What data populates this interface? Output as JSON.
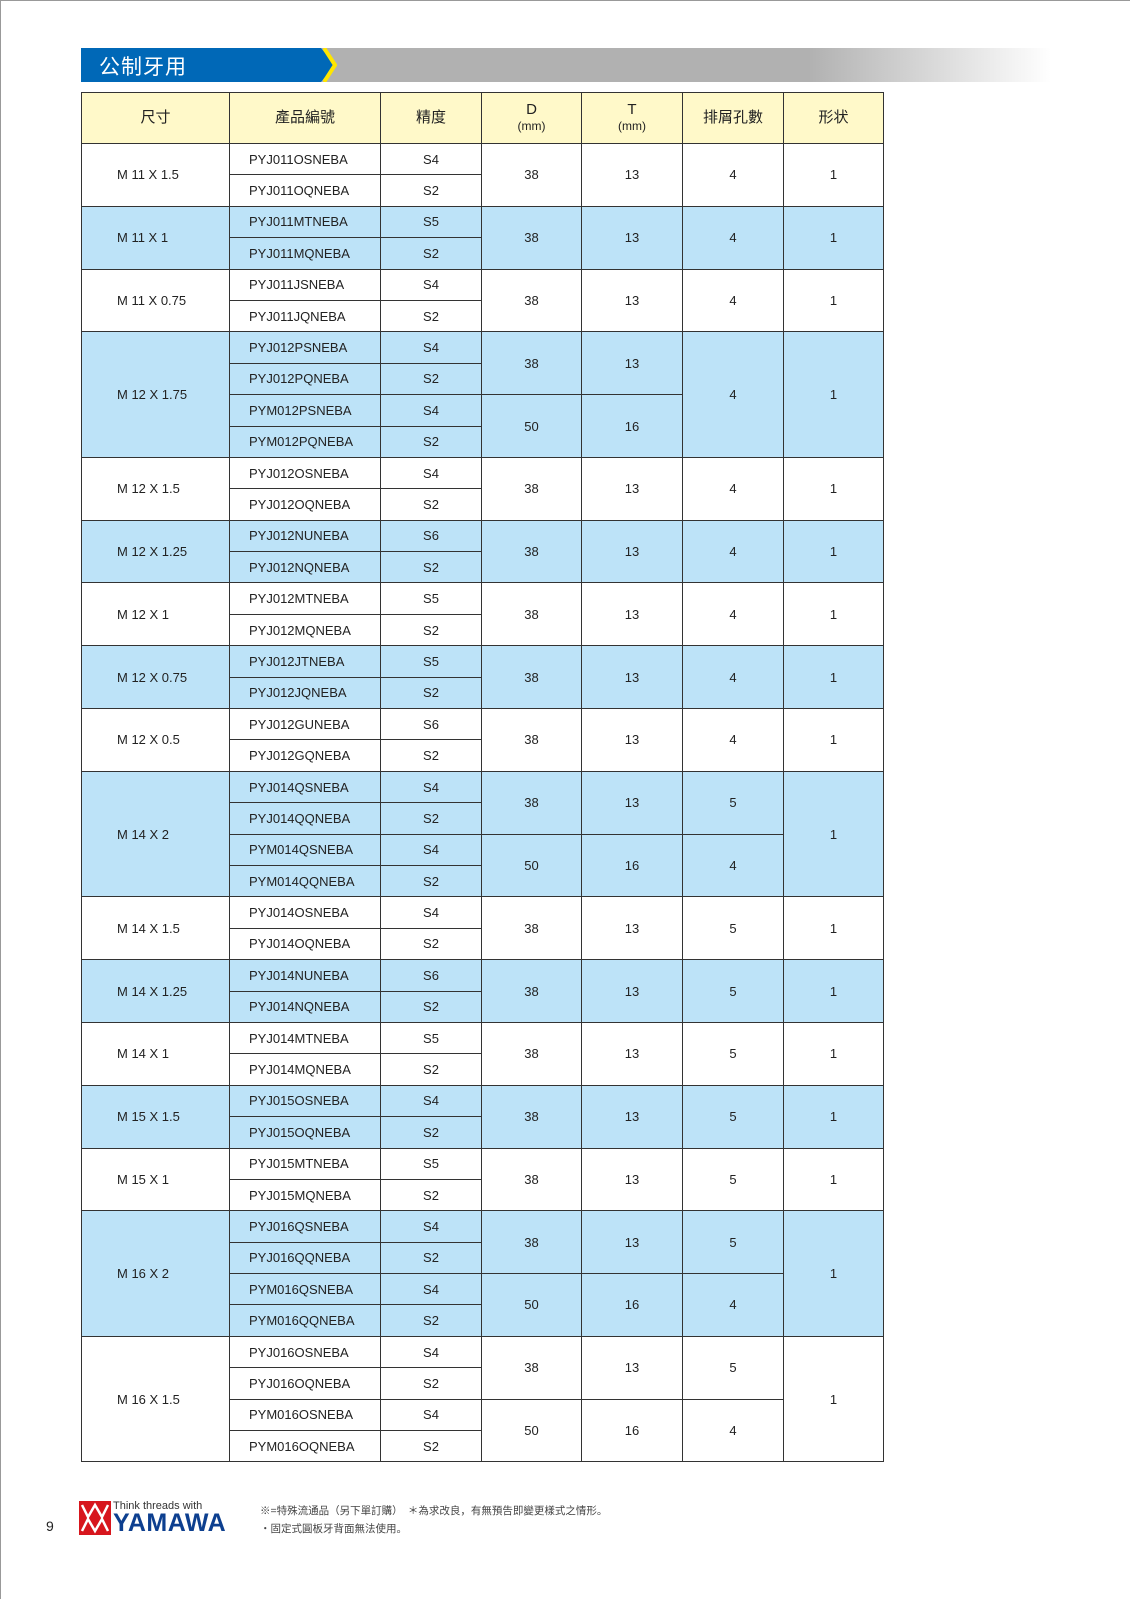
{
  "section_title": "公制牙用",
  "colors": {
    "banner_blue": "#0068b7",
    "arrow_yellow": "#ffe600",
    "header_fill": "#fff9c9",
    "row_shade": "#bde3f8",
    "logo_red": "#d7161d"
  },
  "table": {
    "headers": {
      "size": "尺寸",
      "code": "產品編號",
      "grade": "精度",
      "d": "D",
      "d_unit": "(mm)",
      "t": "T",
      "t_unit": "(mm)",
      "holes": "排屑孔數",
      "shape": "形状"
    },
    "groups": [
      {
        "size": "M 11 X 1.5",
        "shaded": false,
        "items": [
          {
            "code": "PYJ011OSNEBA",
            "grade": "S4"
          },
          {
            "code": "PYJ011OQNEBA",
            "grade": "S2"
          }
        ],
        "dt": [
          {
            "d": "38",
            "t": "13"
          }
        ],
        "holes": "4",
        "shape": "1"
      },
      {
        "size": "M 11 X 1",
        "shaded": true,
        "items": [
          {
            "code": "PYJ011MTNEBA",
            "grade": "S5"
          },
          {
            "code": "PYJ011MQNEBA",
            "grade": "S2"
          }
        ],
        "dt": [
          {
            "d": "38",
            "t": "13"
          }
        ],
        "holes": "4",
        "shape": "1"
      },
      {
        "size": "M 11 X 0.75",
        "shaded": false,
        "items": [
          {
            "code": "PYJ011JSNEBA",
            "grade": "S4"
          },
          {
            "code": "PYJ011JQNEBA",
            "grade": "S2"
          }
        ],
        "dt": [
          {
            "d": "38",
            "t": "13"
          }
        ],
        "holes": "4",
        "shape": "1"
      },
      {
        "size": "M 12 X 1.75",
        "shaded": true,
        "items": [
          {
            "code": "PYJ012PSNEBA",
            "grade": "S4"
          },
          {
            "code": "PYJ012PQNEBA",
            "grade": "S2"
          },
          {
            "code": "PYM012PSNEBA",
            "grade": "S4"
          },
          {
            "code": "PYM012PQNEBA",
            "grade": "S2"
          }
        ],
        "dt": [
          {
            "d": "38",
            "t": "13"
          },
          {
            "d": "50",
            "t": "16"
          }
        ],
        "holes": "4",
        "shape": "1"
      },
      {
        "size": "M 12 X 1.5",
        "shaded": false,
        "items": [
          {
            "code": "PYJ012OSNEBA",
            "grade": "S4"
          },
          {
            "code": "PYJ012OQNEBA",
            "grade": "S2"
          }
        ],
        "dt": [
          {
            "d": "38",
            "t": "13"
          }
        ],
        "holes": "4",
        "shape": "1"
      },
      {
        "size": "M 12 X 1.25",
        "shaded": true,
        "items": [
          {
            "code": "PYJ012NUNEBA",
            "grade": "S6"
          },
          {
            "code": "PYJ012NQNEBA",
            "grade": "S2"
          }
        ],
        "dt": [
          {
            "d": "38",
            "t": "13"
          }
        ],
        "holes": "4",
        "shape": "1"
      },
      {
        "size": "M 12 X 1",
        "shaded": false,
        "items": [
          {
            "code": "PYJ012MTNEBA",
            "grade": "S5"
          },
          {
            "code": "PYJ012MQNEBA",
            "grade": "S2"
          }
        ],
        "dt": [
          {
            "d": "38",
            "t": "13"
          }
        ],
        "holes": "4",
        "shape": "1"
      },
      {
        "size": "M 12 X 0.75",
        "shaded": true,
        "items": [
          {
            "code": "PYJ012JTNEBA",
            "grade": "S5"
          },
          {
            "code": "PYJ012JQNEBA",
            "grade": "S2"
          }
        ],
        "dt": [
          {
            "d": "38",
            "t": "13"
          }
        ],
        "holes": "4",
        "shape": "1"
      },
      {
        "size": "M 12 X 0.5",
        "shaded": false,
        "items": [
          {
            "code": "PYJ012GUNEBA",
            "grade": "S6"
          },
          {
            "code": "PYJ012GQNEBA",
            "grade": "S2"
          }
        ],
        "dt": [
          {
            "d": "38",
            "t": "13"
          }
        ],
        "holes": "4",
        "shape": "1"
      },
      {
        "size": "M 14 X 2",
        "shaded": true,
        "items": [
          {
            "code": "PYJ014QSNEBA",
            "grade": "S4"
          },
          {
            "code": "PYJ014QQNEBA",
            "grade": "S2"
          },
          {
            "code": "PYM014QSNEBA",
            "grade": "S4"
          },
          {
            "code": "PYM014QQNEBA",
            "grade": "S2"
          }
        ],
        "dt": [
          {
            "d": "38",
            "t": "13",
            "holes": "5"
          },
          {
            "d": "50",
            "t": "16",
            "holes": "4"
          }
        ],
        "shape": "1"
      },
      {
        "size": "M 14 X 1.5",
        "shaded": false,
        "items": [
          {
            "code": "PYJ014OSNEBA",
            "grade": "S4"
          },
          {
            "code": "PYJ014OQNEBA",
            "grade": "S2"
          }
        ],
        "dt": [
          {
            "d": "38",
            "t": "13"
          }
        ],
        "holes": "5",
        "shape": "1"
      },
      {
        "size": "M 14 X 1.25",
        "shaded": true,
        "items": [
          {
            "code": "PYJ014NUNEBA",
            "grade": "S6"
          },
          {
            "code": "PYJ014NQNEBA",
            "grade": "S2"
          }
        ],
        "dt": [
          {
            "d": "38",
            "t": "13"
          }
        ],
        "holes": "5",
        "shape": "1"
      },
      {
        "size": "M 14 X 1",
        "shaded": false,
        "items": [
          {
            "code": "PYJ014MTNEBA",
            "grade": "S5"
          },
          {
            "code": "PYJ014MQNEBA",
            "grade": "S2"
          }
        ],
        "dt": [
          {
            "d": "38",
            "t": "13"
          }
        ],
        "holes": "5",
        "shape": "1"
      },
      {
        "size": "M 15 X 1.5",
        "shaded": true,
        "items": [
          {
            "code": "PYJ015OSNEBA",
            "grade": "S4"
          },
          {
            "code": "PYJ015OQNEBA",
            "grade": "S2"
          }
        ],
        "dt": [
          {
            "d": "38",
            "t": "13"
          }
        ],
        "holes": "5",
        "shape": "1"
      },
      {
        "size": "M 15 X 1",
        "shaded": false,
        "items": [
          {
            "code": "PYJ015MTNEBA",
            "grade": "S5"
          },
          {
            "code": "PYJ015MQNEBA",
            "grade": "S2"
          }
        ],
        "dt": [
          {
            "d": "38",
            "t": "13"
          }
        ],
        "holes": "5",
        "shape": "1"
      },
      {
        "size": "M 16 X 2",
        "shaded": true,
        "items": [
          {
            "code": "PYJ016QSNEBA",
            "grade": "S4"
          },
          {
            "code": "PYJ016QQNEBA",
            "grade": "S2"
          },
          {
            "code": "PYM016QSNEBA",
            "grade": "S4"
          },
          {
            "code": "PYM016QQNEBA",
            "grade": "S2"
          }
        ],
        "dt": [
          {
            "d": "38",
            "t": "13",
            "holes": "5"
          },
          {
            "d": "50",
            "t": "16",
            "holes": "4"
          }
        ],
        "shape": "1"
      },
      {
        "size": "M 16 X 1.5",
        "shaded": false,
        "items": [
          {
            "code": "PYJ016OSNEBA",
            "grade": "S4"
          },
          {
            "code": "PYJ016OQNEBA",
            "grade": "S2"
          },
          {
            "code": "PYM016OSNEBA",
            "grade": "S4"
          },
          {
            "code": "PYM016OQNEBA",
            "grade": "S2"
          }
        ],
        "dt": [
          {
            "d": "38",
            "t": "13",
            "holes": "5"
          },
          {
            "d": "50",
            "t": "16",
            "holes": "4"
          }
        ],
        "shape": "1"
      }
    ]
  },
  "footer": {
    "page_number": "9",
    "logo_tagline": "Think threads with",
    "logo_name": "YAMAWA",
    "note_special": "※=特殊流通品（另下單訂購）　＊為求改良，有無預告即變更樣式之情形。",
    "note_fixed": "・固定式圓板牙背面無法使用。"
  }
}
